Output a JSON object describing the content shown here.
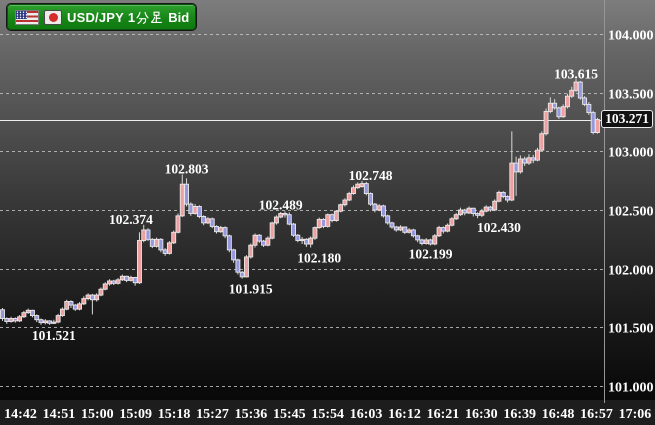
{
  "instrument_badge": {
    "symbol": "USD/JPY",
    "timeframe": "1分足",
    "timeframe_prefix": "1",
    "price_side": "Bid",
    "flag_icons": [
      "us-flag",
      "japan-flag"
    ],
    "background_color": "#178517"
  },
  "chart_data": {
    "type": "candlestick",
    "title": "USD/JPY 1分足 Bid",
    "interval_minutes": 1,
    "grid": "horizontal-dashed",
    "legend_position": "none",
    "price_range_visible": [
      101.0,
      104.0
    ],
    "current_price": 103.271,
    "current_price_label": "103.271",
    "price_axis": {
      "ticks": [
        "104.000",
        "103.500",
        "103.000",
        "102.500",
        "102.000",
        "101.500",
        "101.000"
      ],
      "tick_values": [
        104.0,
        103.5,
        103.0,
        102.5,
        102.0,
        101.5,
        101.0
      ]
    },
    "time_axis": {
      "labels": [
        "14:42",
        "14:51",
        "15:00",
        "15:09",
        "15:18",
        "15:27",
        "15:36",
        "15:45",
        "15:54",
        "16:03",
        "16:12",
        "16:21",
        "16:30",
        "16:39",
        "16:48",
        "16:57",
        "17:06"
      ],
      "label_interval_minutes": 9
    },
    "annotations": [
      {
        "label": "101.521",
        "at_index": 12,
        "at_price": 101.435
      },
      {
        "label": "102.374",
        "at_index": 30,
        "at_price": 102.425
      },
      {
        "label": "102.803",
        "at_index": 43,
        "at_price": 102.855
      },
      {
        "label": "101.915",
        "at_index": 58,
        "at_price": 101.83
      },
      {
        "label": "102.489",
        "at_index": 65,
        "at_price": 102.545
      },
      {
        "label": "102.180",
        "at_index": 74,
        "at_price": 102.095
      },
      {
        "label": "102.748",
        "at_index": 86,
        "at_price": 102.8
      },
      {
        "label": "102.199",
        "at_index": 100,
        "at_price": 102.13
      },
      {
        "label": "102.430",
        "at_index": 116,
        "at_price": 102.355
      },
      {
        "label": "103.615",
        "at_index": 134,
        "at_price": 103.665
      }
    ],
    "colors": {
      "up": "#eea0a0",
      "down": "#9598dc",
      "outline": "#e9e9e9",
      "wick": "#d9d9d9",
      "grid": "#c6c6c6",
      "axis_line": "#969696",
      "current_price_line": "#ececec",
      "label_text": "#ffffff",
      "time_strip": "#1d1d1d"
    },
    "candles_start_time": "14:38",
    "ohlc": [
      [
        101.65,
        101.665,
        101.555,
        101.575
      ],
      [
        101.575,
        101.585,
        101.53,
        101.55
      ],
      [
        101.55,
        101.59,
        101.54,
        101.575
      ],
      [
        101.575,
        101.585,
        101.54,
        101.555
      ],
      [
        101.555,
        101.605,
        101.545,
        101.59
      ],
      [
        101.59,
        101.64,
        101.58,
        101.625
      ],
      [
        101.625,
        101.66,
        101.615,
        101.645
      ],
      [
        101.645,
        101.65,
        101.585,
        101.6
      ],
      [
        101.6,
        101.61,
        101.545,
        101.565
      ],
      [
        101.565,
        101.575,
        101.521,
        101.54
      ],
      [
        101.54,
        101.57,
        101.525,
        101.555
      ],
      [
        101.555,
        101.56,
        101.521,
        101.535
      ],
      [
        101.535,
        101.565,
        101.528,
        101.545
      ],
      [
        101.545,
        101.615,
        101.535,
        101.6
      ],
      [
        101.6,
        101.67,
        101.59,
        101.655
      ],
      [
        101.655,
        101.735,
        101.645,
        101.72
      ],
      [
        101.72,
        101.73,
        101.665,
        101.69
      ],
      [
        101.69,
        101.7,
        101.64,
        101.655
      ],
      [
        101.655,
        101.715,
        101.645,
        101.7
      ],
      [
        101.7,
        101.765,
        101.69,
        101.745
      ],
      [
        101.745,
        101.79,
        101.73,
        101.775
      ],
      [
        101.775,
        101.785,
        101.61,
        101.735
      ],
      [
        101.735,
        101.79,
        101.72,
        101.775
      ],
      [
        101.775,
        101.84,
        101.765,
        101.825
      ],
      [
        101.825,
        101.885,
        101.815,
        101.87
      ],
      [
        101.87,
        101.91,
        101.855,
        101.895
      ],
      [
        101.895,
        101.905,
        101.86,
        101.875
      ],
      [
        101.875,
        101.92,
        101.865,
        101.905
      ],
      [
        101.905,
        101.95,
        101.895,
        101.935
      ],
      [
        101.935,
        101.94,
        101.885,
        101.9
      ],
      [
        101.9,
        101.94,
        101.89,
        101.925
      ],
      [
        101.925,
        101.93,
        101.855,
        101.88
      ],
      [
        101.88,
        102.31,
        101.87,
        102.24
      ],
      [
        102.24,
        102.374,
        102.225,
        102.33
      ],
      [
        102.33,
        102.345,
        102.235,
        102.25
      ],
      [
        102.25,
        102.26,
        102.175,
        102.19
      ],
      [
        102.19,
        102.265,
        102.18,
        102.25
      ],
      [
        102.25,
        102.26,
        102.14,
        102.16
      ],
      [
        102.16,
        102.175,
        102.11,
        102.13
      ],
      [
        102.13,
        102.235,
        102.12,
        102.22
      ],
      [
        102.22,
        102.325,
        102.21,
        102.31
      ],
      [
        102.31,
        102.47,
        102.3,
        102.45
      ],
      [
        102.45,
        102.803,
        102.44,
        102.72
      ],
      [
        102.72,
        102.77,
        102.53,
        102.55
      ],
      [
        102.55,
        102.565,
        102.45,
        102.47
      ],
      [
        102.47,
        102.55,
        102.46,
        102.53
      ],
      [
        102.53,
        102.54,
        102.43,
        102.445
      ],
      [
        102.445,
        102.455,
        102.37,
        102.39
      ],
      [
        102.39,
        102.44,
        102.38,
        102.425
      ],
      [
        102.425,
        102.435,
        102.345,
        102.36
      ],
      [
        102.36,
        102.37,
        102.3,
        102.315
      ],
      [
        102.315,
        102.365,
        102.305,
        102.35
      ],
      [
        102.35,
        102.36,
        102.26,
        102.28
      ],
      [
        102.28,
        102.29,
        102.14,
        102.16
      ],
      [
        102.16,
        102.17,
        102.05,
        102.075
      ],
      [
        102.075,
        102.085,
        101.95,
        101.97
      ],
      [
        101.97,
        101.98,
        101.915,
        101.93
      ],
      [
        101.93,
        102.115,
        101.925,
        102.1
      ],
      [
        102.1,
        102.215,
        102.085,
        102.2
      ],
      [
        102.2,
        102.3,
        102.18,
        102.285
      ],
      [
        102.285,
        102.295,
        102.22,
        102.235
      ],
      [
        102.235,
        102.245,
        102.185,
        102.2
      ],
      [
        102.2,
        102.275,
        102.19,
        102.26
      ],
      [
        102.26,
        102.4,
        102.25,
        102.39
      ],
      [
        102.39,
        102.455,
        102.375,
        102.44
      ],
      [
        102.44,
        102.483,
        102.43,
        102.47
      ],
      [
        102.47,
        102.489,
        102.435,
        102.46
      ],
      [
        102.46,
        102.48,
        102.37,
        102.38
      ],
      [
        102.38,
        102.39,
        102.27,
        102.285
      ],
      [
        102.285,
        102.295,
        102.225,
        102.24
      ],
      [
        102.24,
        102.27,
        102.21,
        102.25
      ],
      [
        102.25,
        102.26,
        102.185,
        102.21
      ],
      [
        102.21,
        102.275,
        102.18,
        102.26
      ],
      [
        102.26,
        102.36,
        102.245,
        102.35
      ],
      [
        102.35,
        102.435,
        102.34,
        102.42
      ],
      [
        102.42,
        102.43,
        102.345,
        102.36
      ],
      [
        102.36,
        102.47,
        102.35,
        102.46
      ],
      [
        102.46,
        102.47,
        102.395,
        102.41
      ],
      [
        102.41,
        102.5,
        102.4,
        102.49
      ],
      [
        102.49,
        102.555,
        102.48,
        102.545
      ],
      [
        102.545,
        102.6,
        102.53,
        102.585
      ],
      [
        102.585,
        102.655,
        102.575,
        102.64
      ],
      [
        102.64,
        102.71,
        102.63,
        102.69
      ],
      [
        102.69,
        102.735,
        102.68,
        102.72
      ],
      [
        102.7,
        102.748,
        102.69,
        102.725
      ],
      [
        102.725,
        102.74,
        102.625,
        102.64
      ],
      [
        102.64,
        102.65,
        102.535,
        102.55
      ],
      [
        102.55,
        102.56,
        102.48,
        102.5
      ],
      [
        102.5,
        102.55,
        102.49,
        102.535
      ],
      [
        102.535,
        102.545,
        102.435,
        102.45
      ],
      [
        102.45,
        102.46,
        102.375,
        102.39
      ],
      [
        102.39,
        102.4,
        102.34,
        102.355
      ],
      [
        102.355,
        102.365,
        102.315,
        102.33
      ],
      [
        102.33,
        102.37,
        102.32,
        102.355
      ],
      [
        102.355,
        102.36,
        102.295,
        102.31
      ],
      [
        102.31,
        102.345,
        102.3,
        102.33
      ],
      [
        102.33,
        102.34,
        102.265,
        102.28
      ],
      [
        102.28,
        102.29,
        102.225,
        102.245
      ],
      [
        102.245,
        102.255,
        102.199,
        102.215
      ],
      [
        102.215,
        102.26,
        102.205,
        102.245
      ],
      [
        102.245,
        102.255,
        102.199,
        102.21
      ],
      [
        102.21,
        102.295,
        102.2,
        102.28
      ],
      [
        102.28,
        102.365,
        102.27,
        102.35
      ],
      [
        102.35,
        102.36,
        102.3,
        102.32
      ],
      [
        102.32,
        102.385,
        102.31,
        102.37
      ],
      [
        102.37,
        102.44,
        102.36,
        102.425
      ],
      [
        102.425,
        102.475,
        102.415,
        102.46
      ],
      [
        102.46,
        102.52,
        102.45,
        102.5
      ],
      [
        102.5,
        102.51,
        102.455,
        102.475
      ],
      [
        102.475,
        102.53,
        102.465,
        102.515
      ],
      [
        102.515,
        102.52,
        102.445,
        102.47
      ],
      [
        102.47,
        102.48,
        102.43,
        102.455
      ],
      [
        102.455,
        102.51,
        102.44,
        102.49
      ],
      [
        102.49,
        102.54,
        102.48,
        102.525
      ],
      [
        102.525,
        102.535,
        102.485,
        102.5
      ],
      [
        102.5,
        102.59,
        102.49,
        102.575
      ],
      [
        102.575,
        102.665,
        102.565,
        102.65
      ],
      [
        102.65,
        102.66,
        102.6,
        102.615
      ],
      [
        102.615,
        102.625,
        102.565,
        102.585
      ],
      [
        102.585,
        103.17,
        102.575,
        102.9
      ],
      [
        102.9,
        102.955,
        102.62,
        102.825
      ],
      [
        102.825,
        102.965,
        102.81,
        102.935
      ],
      [
        102.935,
        102.955,
        102.875,
        102.9
      ],
      [
        102.9,
        102.975,
        102.885,
        102.945
      ],
      [
        102.945,
        102.97,
        102.9,
        102.925
      ],
      [
        102.925,
        103.03,
        102.915,
        103.01
      ],
      [
        103.01,
        103.17,
        103.0,
        103.15
      ],
      [
        103.15,
        103.365,
        103.135,
        103.34
      ],
      [
        103.34,
        103.46,
        103.325,
        103.41
      ],
      [
        103.41,
        103.445,
        103.355,
        103.37
      ],
      [
        103.37,
        103.38,
        103.275,
        103.295
      ],
      [
        103.295,
        103.4,
        103.285,
        103.38
      ],
      [
        103.38,
        103.49,
        103.365,
        103.47
      ],
      [
        103.47,
        103.55,
        103.455,
        103.52
      ],
      [
        103.52,
        103.615,
        103.505,
        103.59
      ],
      [
        103.59,
        103.6,
        103.44,
        103.455
      ],
      [
        103.455,
        103.47,
        103.385,
        103.4
      ],
      [
        103.4,
        103.42,
        103.31,
        103.33
      ],
      [
        103.33,
        103.345,
        103.145,
        103.16
      ],
      [
        103.16,
        103.285,
        103.15,
        103.271
      ]
    ]
  }
}
